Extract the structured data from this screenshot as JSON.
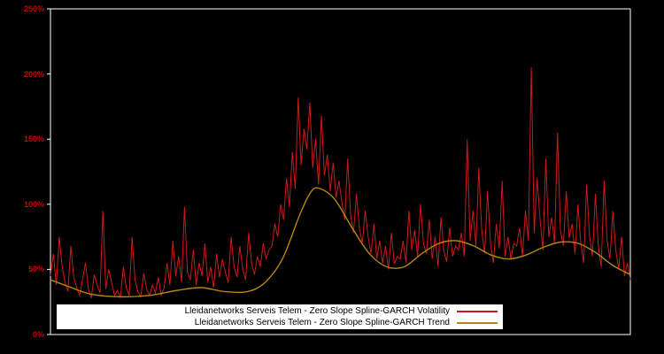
{
  "colors": {
    "background": "#000000",
    "frame": "#ffffff",
    "tick_label": "#cc0000",
    "legend_bg": "#ffffff",
    "legend_text": "#000000",
    "volatility_line": "#d01818",
    "trend_line": "#b8860b"
  },
  "legend": {
    "volatility_label": "Lleidanetworks Serveis Telem - Zero Slope Spline-GARCH Volatility",
    "trend_label": "Lleidanetworks Serveis Telem - Zero Slope Spline-GARCH Trend"
  },
  "chart_data": {
    "type": "line",
    "title": "",
    "xlabel": "",
    "ylabel": "",
    "ylim": [
      0,
      250
    ],
    "yticks": [
      0,
      50,
      100,
      150,
      200,
      250
    ],
    "ytick_labels": [
      "0%",
      "50%",
      "100%",
      "150%",
      "200%",
      "250%"
    ],
    "x_axis_labels_visible": false,
    "grid": false,
    "legend_position": "bottom-center-inside",
    "series": [
      {
        "name": "Lleidanetworks Serveis Telem - Zero Slope Spline-GARCH Volatility",
        "color": "#d01818",
        "style": "noisy-line",
        "unit": "%",
        "values": [
          45,
          62,
          38,
          75,
          52,
          40,
          33,
          68,
          44,
          36,
          30,
          42,
          55,
          35,
          28,
          46,
          38,
          32,
          95,
          35,
          50,
          40,
          30,
          34,
          28,
          52,
          36,
          30,
          75,
          42,
          33,
          29,
          47,
          35,
          30,
          38,
          32,
          44,
          30,
          36,
          55,
          38,
          72,
          45,
          60,
          40,
          98,
          48,
          42,
          65,
          38,
          55,
          45,
          70,
          40,
          52,
          36,
          62,
          44,
          58,
          48,
          40,
          75,
          52,
          44,
          68,
          50,
          42,
          78,
          55,
          46,
          60,
          52,
          70,
          58,
          65,
          68,
          85,
          75,
          100,
          88,
          120,
          98,
          140,
          112,
          182,
          130,
          158,
          142,
          178,
          128,
          150,
          115,
          168,
          122,
          138,
          110,
          132,
          105,
          118,
          102,
          88,
          135,
          92,
          78,
          108,
          82,
          70,
          95,
          75,
          62,
          85,
          58,
          72,
          55,
          68,
          50,
          78,
          54,
          60,
          58,
          72,
          55,
          95,
          65,
          80,
          60,
          100,
          70,
          62,
          88,
          58,
          75,
          52,
          90,
          64,
          56,
          82,
          60,
          68,
          65,
          78,
          60,
          150,
          72,
          95,
          68,
          128,
          80,
          62,
          110,
          70,
          55,
          85,
          66,
          118,
          60,
          75,
          58,
          70,
          68,
          82,
          60,
          95,
          72,
          205,
          78,
          120,
          88,
          65,
          135,
          75,
          90,
          70,
          155,
          80,
          68,
          110,
          74,
          85,
          62,
          100,
          70,
          55,
          115,
          75,
          60,
          108,
          68,
          52,
          118,
          72,
          58,
          95,
          65,
          50,
          75,
          45,
          55,
          42
        ]
      },
      {
        "name": "Lleidanetworks Serveis Telem - Zero Slope Spline-GARCH Trend",
        "color": "#b8860b",
        "style": "smooth-line",
        "unit": "%",
        "keypoints": [
          {
            "x": 0.0,
            "y": 42
          },
          {
            "x": 0.03,
            "y": 37
          },
          {
            "x": 0.07,
            "y": 31
          },
          {
            "x": 0.12,
            "y": 29
          },
          {
            "x": 0.17,
            "y": 30
          },
          {
            "x": 0.22,
            "y": 34
          },
          {
            "x": 0.26,
            "y": 36
          },
          {
            "x": 0.3,
            "y": 33
          },
          {
            "x": 0.34,
            "y": 33
          },
          {
            "x": 0.37,
            "y": 40
          },
          {
            "x": 0.4,
            "y": 58
          },
          {
            "x": 0.43,
            "y": 92
          },
          {
            "x": 0.45,
            "y": 110
          },
          {
            "x": 0.465,
            "y": 112
          },
          {
            "x": 0.49,
            "y": 104
          },
          {
            "x": 0.52,
            "y": 82
          },
          {
            "x": 0.55,
            "y": 62
          },
          {
            "x": 0.58,
            "y": 52
          },
          {
            "x": 0.61,
            "y": 52
          },
          {
            "x": 0.64,
            "y": 62
          },
          {
            "x": 0.67,
            "y": 70
          },
          {
            "x": 0.7,
            "y": 72
          },
          {
            "x": 0.73,
            "y": 68
          },
          {
            "x": 0.76,
            "y": 61
          },
          {
            "x": 0.79,
            "y": 58
          },
          {
            "x": 0.82,
            "y": 61
          },
          {
            "x": 0.85,
            "y": 67
          },
          {
            "x": 0.88,
            "y": 71
          },
          {
            "x": 0.91,
            "y": 70
          },
          {
            "x": 0.94,
            "y": 63
          },
          {
            "x": 0.97,
            "y": 53
          },
          {
            "x": 1.0,
            "y": 46
          }
        ]
      }
    ]
  }
}
